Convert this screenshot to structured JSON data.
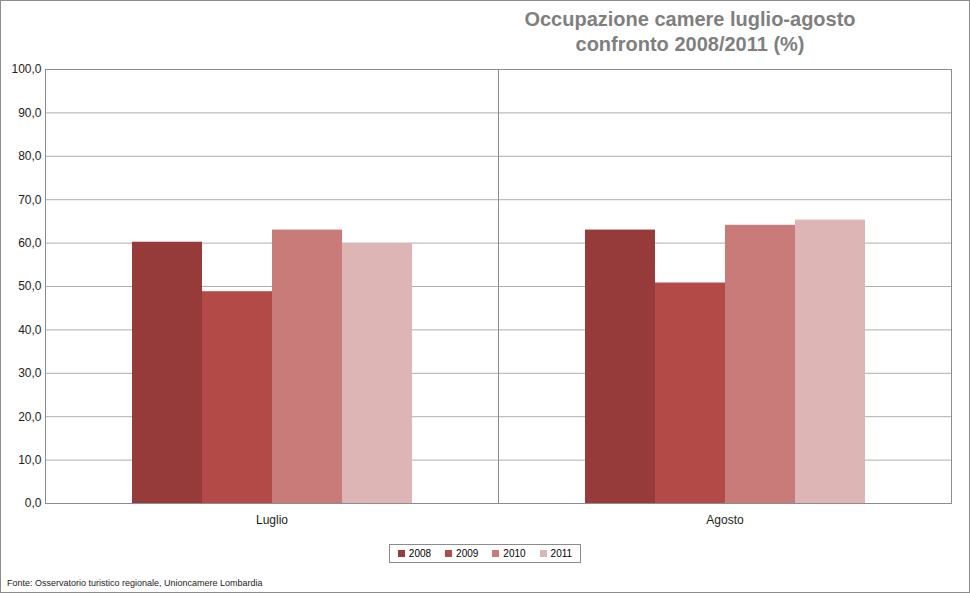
{
  "chart_data": {
    "type": "bar",
    "title": [
      "Occupazione camere luglio-agosto",
      "confronto 2008/2011 (%)"
    ],
    "source": "Fonte: Osservatorio turistico regionale, Unioncamere Lombardia",
    "categories": [
      "Luglio",
      "Agosto"
    ],
    "series": [
      {
        "name": "2008",
        "color": "#963a3a",
        "values": [
          60.2,
          63.0
        ]
      },
      {
        "name": "2009",
        "color": "#b34a48",
        "values": [
          48.8,
          50.8
        ]
      },
      {
        "name": "2010",
        "color": "#c97b7a",
        "values": [
          63.0,
          64.1
        ]
      },
      {
        "name": "2011",
        "color": "#ddb5b5",
        "values": [
          59.9,
          65.3
        ]
      }
    ],
    "ylim": [
      0,
      100
    ],
    "yticks": [
      {
        "value": 0,
        "label": "0,0"
      },
      {
        "value": 10,
        "label": "10,0"
      },
      {
        "value": 20,
        "label": "20,0"
      },
      {
        "value": 30,
        "label": "30,0"
      },
      {
        "value": 40,
        "label": "40,0"
      },
      {
        "value": 50,
        "label": "50,0"
      },
      {
        "value": 60,
        "label": "60,0"
      },
      {
        "value": 70,
        "label": "70,0"
      },
      {
        "value": 80,
        "label": "80,0"
      },
      {
        "value": 90,
        "label": "90,0"
      },
      {
        "value": 100,
        "label": "100,0"
      }
    ],
    "grid": true,
    "legend": "bottom"
  }
}
